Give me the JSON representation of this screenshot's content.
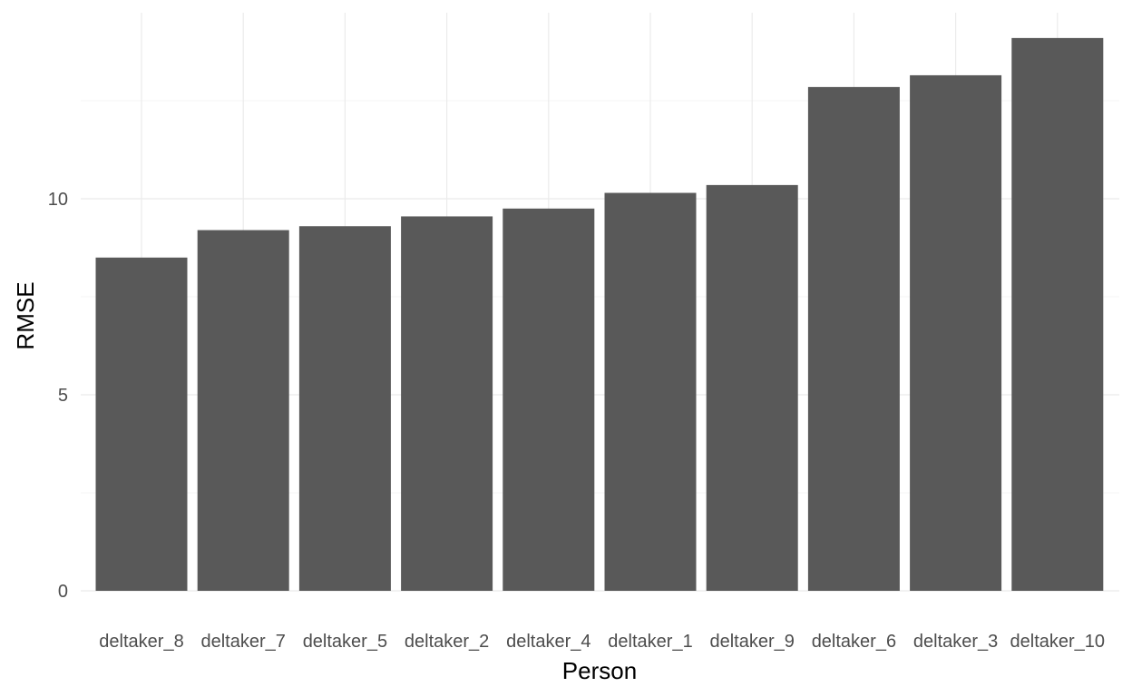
{
  "chart_data": {
    "type": "bar",
    "title": "",
    "xlabel": "Person",
    "ylabel": "RMSE",
    "categories": [
      "deltaker_8",
      "deltaker_7",
      "deltaker_5",
      "deltaker_2",
      "deltaker_4",
      "deltaker_1",
      "deltaker_9",
      "deltaker_6",
      "deltaker_3",
      "deltaker_10"
    ],
    "values": [
      8.5,
      9.2,
      9.3,
      9.55,
      9.75,
      10.15,
      10.35,
      12.85,
      13.15,
      14.1
    ],
    "ylim": [
      0,
      14.1
    ],
    "yticks": [
      0,
      5,
      10
    ],
    "bar_color": "#595959",
    "grid": true,
    "legend": "none"
  }
}
